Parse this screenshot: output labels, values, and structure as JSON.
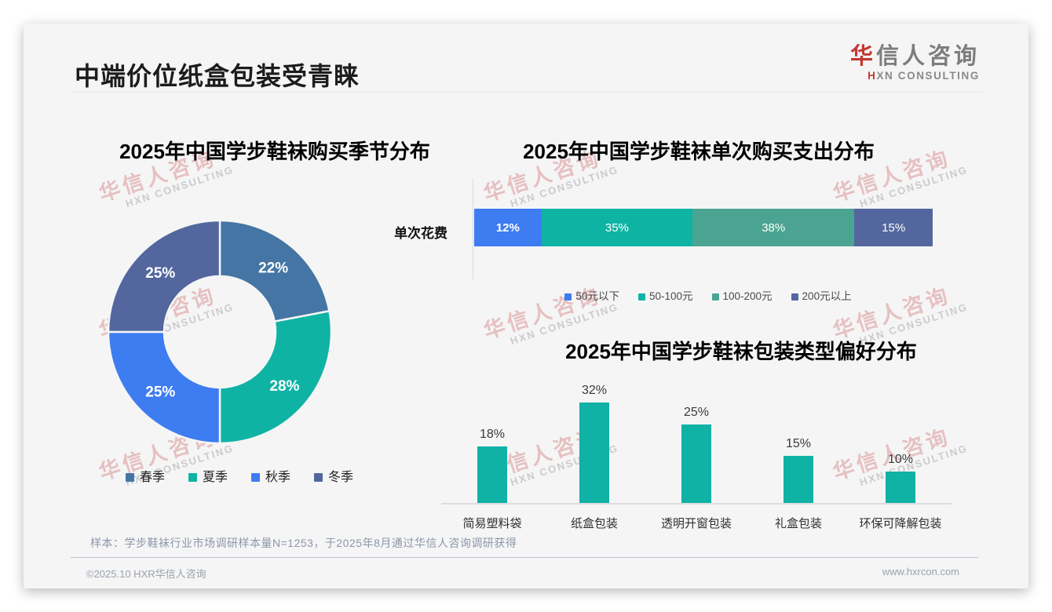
{
  "page": {
    "main_title": "中端价位纸盒包装受青睐",
    "logo": {
      "cn_first": "华",
      "cn_rest": "信人咨询",
      "en_first": "H",
      "en_rest": "XN CONSULTING"
    },
    "watermark": {
      "cn": "华信人咨询",
      "en": "HXN CONSULTING"
    },
    "sample_note": "样本：学步鞋袜行业市场调研样本量N=1253，于2025年8月通过华信人咨询调研获得",
    "footer_left": "©2025.10 HXR华信人咨询",
    "footer_right": "www.hxrcon.com"
  },
  "colors": {
    "slide_bg": "#f5f5f6",
    "bright_blue": "#3D7CF1",
    "teal": "#0FB3A4",
    "muted_green": "#4BA491",
    "slate_blue": "#53679E",
    "steel_blue": "#4575A4",
    "bar_teal": "#10B2A6",
    "brand_red": "#c23830"
  },
  "chart_data": [
    {
      "id": "season-donut",
      "type": "pie",
      "variant": "donut",
      "title": "2025年中国学步鞋袜购买季节分布",
      "categories": [
        "春季",
        "夏季",
        "秋季",
        "冬季"
      ],
      "values": [
        22,
        28,
        25,
        25
      ],
      "labels": [
        "22%",
        "28%",
        "25%",
        "25%"
      ],
      "colors": [
        "#4575A4",
        "#0FB3A4",
        "#3D7CF1",
        "#53679E"
      ],
      "start_angle_deg": 0,
      "direction": "clockwise",
      "legend_position": "bottom"
    },
    {
      "id": "spend-stacked",
      "type": "bar",
      "variant": "stacked-horizontal",
      "title": "2025年中国学步鞋袜单次购买支出分布",
      "row_label": "单次花费",
      "categories": [
        "50元以下",
        "50-100元",
        "100-200元",
        "200元以上"
      ],
      "values": [
        12,
        35,
        38,
        15
      ],
      "labels": [
        "12%",
        "35%",
        "38%",
        "15%"
      ],
      "colors": [
        "#3D7CF1",
        "#0FB3A4",
        "#4BA491",
        "#53679E"
      ],
      "first_label_bold": true,
      "legend_position": "bottom"
    },
    {
      "id": "packaging-bars",
      "type": "bar",
      "variant": "vertical",
      "title": "2025年中国学步鞋袜包装类型偏好分布",
      "categories": [
        "简易塑料袋",
        "纸盒包装",
        "透明开窗包装",
        "礼盒包装",
        "环保可降解包装"
      ],
      "values": [
        18,
        32,
        25,
        15,
        10
      ],
      "labels": [
        "18%",
        "32%",
        "25%",
        "15%",
        "10%"
      ],
      "bar_color": "#10B2A6",
      "ylim": [
        0,
        35
      ],
      "grid": false
    }
  ]
}
